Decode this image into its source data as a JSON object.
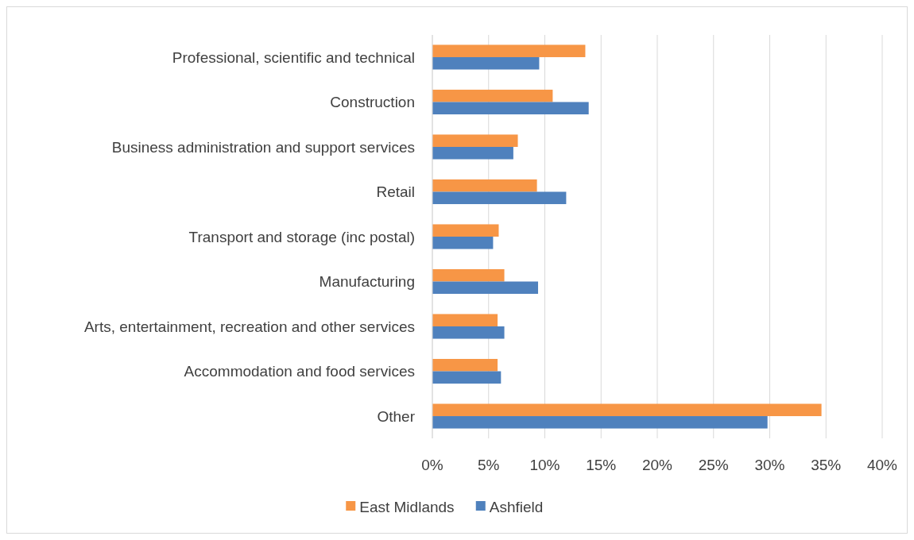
{
  "chart_data": {
    "type": "bar",
    "orientation": "horizontal",
    "categories": [
      "Professional, scientific and technical",
      "Construction",
      "Business administration and support services",
      "Retail",
      "Transport and storage (inc postal)",
      "Manufacturing",
      "Arts, entertainment, recreation and other services",
      "Accommodation and food services",
      "Other"
    ],
    "series": [
      {
        "name": "East Midlands",
        "color": "#f79646",
        "values": [
          13.6,
          10.7,
          7.6,
          9.3,
          5.9,
          6.4,
          5.8,
          5.8,
          34.6
        ]
      },
      {
        "name": "Ashfield",
        "color": "#4f81bd",
        "values": [
          9.5,
          13.9,
          7.2,
          11.9,
          5.4,
          9.4,
          6.4,
          6.1,
          29.8
        ]
      }
    ],
    "xlim": [
      0,
      40
    ],
    "xticks": [
      {
        "value": 0,
        "label": "0%"
      },
      {
        "value": 5,
        "label": "5%"
      },
      {
        "value": 10,
        "label": "10%"
      },
      {
        "value": 15,
        "label": "15%"
      },
      {
        "value": 20,
        "label": "20%"
      },
      {
        "value": 25,
        "label": "25%"
      },
      {
        "value": 30,
        "label": "30%"
      },
      {
        "value": 35,
        "label": "35%"
      },
      {
        "value": 40,
        "label": "40%"
      }
    ],
    "grid": "x",
    "legend": "bottom"
  }
}
